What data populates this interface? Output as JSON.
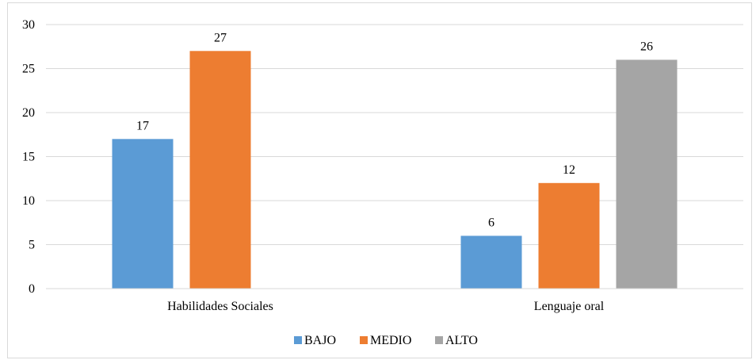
{
  "chart_data": {
    "type": "bar",
    "categories": [
      "Habilidades Sociales",
      "Lenguaje oral"
    ],
    "series": [
      {
        "name": "BAJO",
        "values": [
          17,
          6
        ],
        "color": "#5b9bd5"
      },
      {
        "name": "MEDIO",
        "values": [
          27,
          12
        ],
        "color": "#ed7d31"
      },
      {
        "name": "ALTO",
        "values": [
          null,
          26
        ],
        "color": "#a5a5a5"
      }
    ],
    "ylim": [
      0,
      30
    ],
    "yticks": [
      0,
      5,
      10,
      15,
      20,
      25,
      30
    ],
    "grid": true,
    "legend_position": "bottom"
  }
}
